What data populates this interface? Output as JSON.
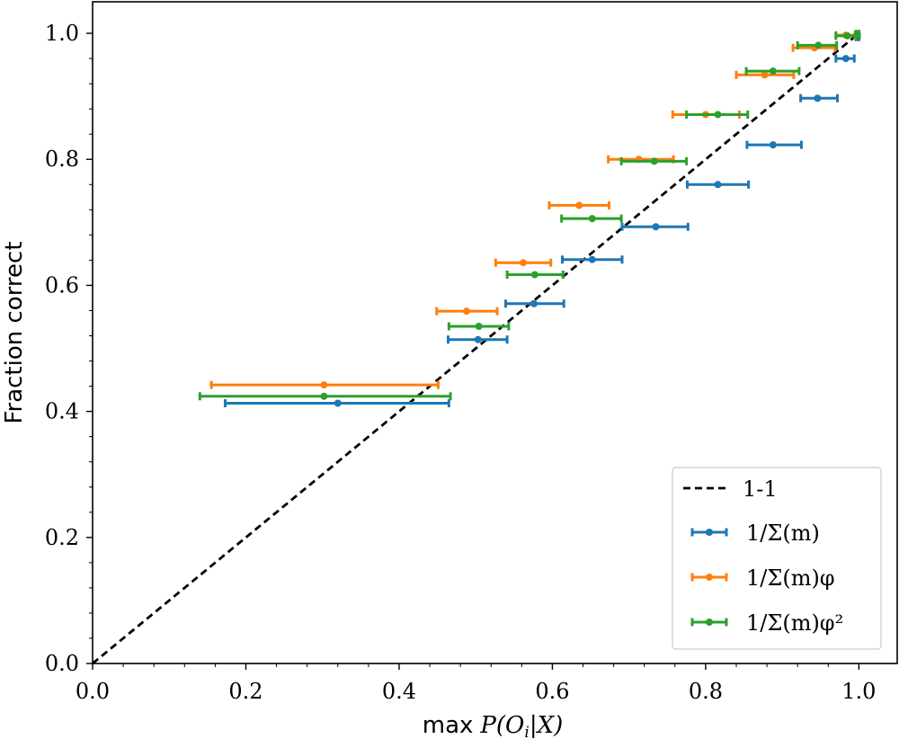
{
  "chart_data": {
    "type": "scatter",
    "xlabel_prefix": "max",
    "xlabel_math": "P(O",
    "xlabel_sub": "i",
    "xlabel_math_end": "|X)",
    "ylabel": "Fraction correct",
    "xlim": [
      0.0,
      1.05
    ],
    "ylim": [
      0.0,
      1.05
    ],
    "xticks": [
      0.0,
      0.2,
      0.4,
      0.6,
      0.8,
      1.0
    ],
    "xtick_labels": [
      "0.0",
      "0.2",
      "0.4",
      "0.6",
      "0.8",
      "1.0"
    ],
    "yticks": [
      0.0,
      0.2,
      0.4,
      0.6,
      0.8,
      1.0
    ],
    "ytick_labels": [
      "0.0",
      "0.2",
      "0.4",
      "0.6",
      "0.8",
      "1.0"
    ],
    "reference_line": {
      "name": "1-1",
      "points": [
        [
          0,
          0
        ],
        [
          1,
          1
        ]
      ],
      "color": "#000000",
      "style": "dashed"
    },
    "legend_position": "lower right",
    "series": [
      {
        "name": "1/Σ(m)",
        "color": "#1f77b4",
        "points": [
          {
            "x": 0.32,
            "y": 0.413,
            "xmin": 0.173,
            "xmax": 0.465
          },
          {
            "x": 0.503,
            "y": 0.514,
            "xmin": 0.464,
            "xmax": 0.541
          },
          {
            "x": 0.576,
            "y": 0.571,
            "xmin": 0.539,
            "xmax": 0.615
          },
          {
            "x": 0.652,
            "y": 0.641,
            "xmin": 0.613,
            "xmax": 0.691
          },
          {
            "x": 0.735,
            "y": 0.693,
            "xmin": 0.691,
            "xmax": 0.777
          },
          {
            "x": 0.816,
            "y": 0.76,
            "xmin": 0.776,
            "xmax": 0.856
          },
          {
            "x": 0.888,
            "y": 0.823,
            "xmin": 0.854,
            "xmax": 0.925
          },
          {
            "x": 0.946,
            "y": 0.897,
            "xmin": 0.924,
            "xmax": 0.972
          },
          {
            "x": 0.983,
            "y": 0.96,
            "xmin": 0.97,
            "xmax": 0.994
          },
          {
            "x": 0.998,
            "y": 0.994,
            "xmin": 0.996,
            "xmax": 1.0
          }
        ]
      },
      {
        "name": "1/Σ(m)φ",
        "color": "#ff7f0e",
        "points": [
          {
            "x": 0.302,
            "y": 0.442,
            "xmin": 0.155,
            "xmax": 0.451
          },
          {
            "x": 0.488,
            "y": 0.559,
            "xmin": 0.449,
            "xmax": 0.528
          },
          {
            "x": 0.562,
            "y": 0.636,
            "xmin": 0.526,
            "xmax": 0.598
          },
          {
            "x": 0.635,
            "y": 0.727,
            "xmin": 0.596,
            "xmax": 0.674
          },
          {
            "x": 0.713,
            "y": 0.8,
            "xmin": 0.673,
            "xmax": 0.758
          },
          {
            "x": 0.8,
            "y": 0.871,
            "xmin": 0.757,
            "xmax": 0.844
          },
          {
            "x": 0.877,
            "y": 0.934,
            "xmin": 0.84,
            "xmax": 0.915
          },
          {
            "x": 0.942,
            "y": 0.977,
            "xmin": 0.914,
            "xmax": 0.969
          },
          {
            "x": 0.983,
            "y": 0.997,
            "xmin": 0.97,
            "xmax": 0.995
          },
          {
            "x": 0.998,
            "y": 0.999,
            "xmin": 0.996,
            "xmax": 1.0
          }
        ]
      },
      {
        "name": "1/Σ(m)φ²",
        "color": "#2ca02c",
        "points": [
          {
            "x": 0.302,
            "y": 0.424,
            "xmin": 0.14,
            "xmax": 0.467
          },
          {
            "x": 0.504,
            "y": 0.535,
            "xmin": 0.465,
            "xmax": 0.543
          },
          {
            "x": 0.577,
            "y": 0.617,
            "xmin": 0.541,
            "xmax": 0.614
          },
          {
            "x": 0.652,
            "y": 0.706,
            "xmin": 0.612,
            "xmax": 0.69
          },
          {
            "x": 0.733,
            "y": 0.797,
            "xmin": 0.69,
            "xmax": 0.775
          },
          {
            "x": 0.816,
            "y": 0.871,
            "xmin": 0.775,
            "xmax": 0.855
          },
          {
            "x": 0.888,
            "y": 0.94,
            "xmin": 0.853,
            "xmax": 0.922
          },
          {
            "x": 0.947,
            "y": 0.981,
            "xmin": 0.92,
            "xmax": 0.971
          },
          {
            "x": 0.985,
            "y": 0.996,
            "xmin": 0.97,
            "xmax": 0.997
          },
          {
            "x": 0.998,
            "y": 0.999,
            "xmin": 0.996,
            "xmax": 1.0
          }
        ]
      }
    ]
  }
}
